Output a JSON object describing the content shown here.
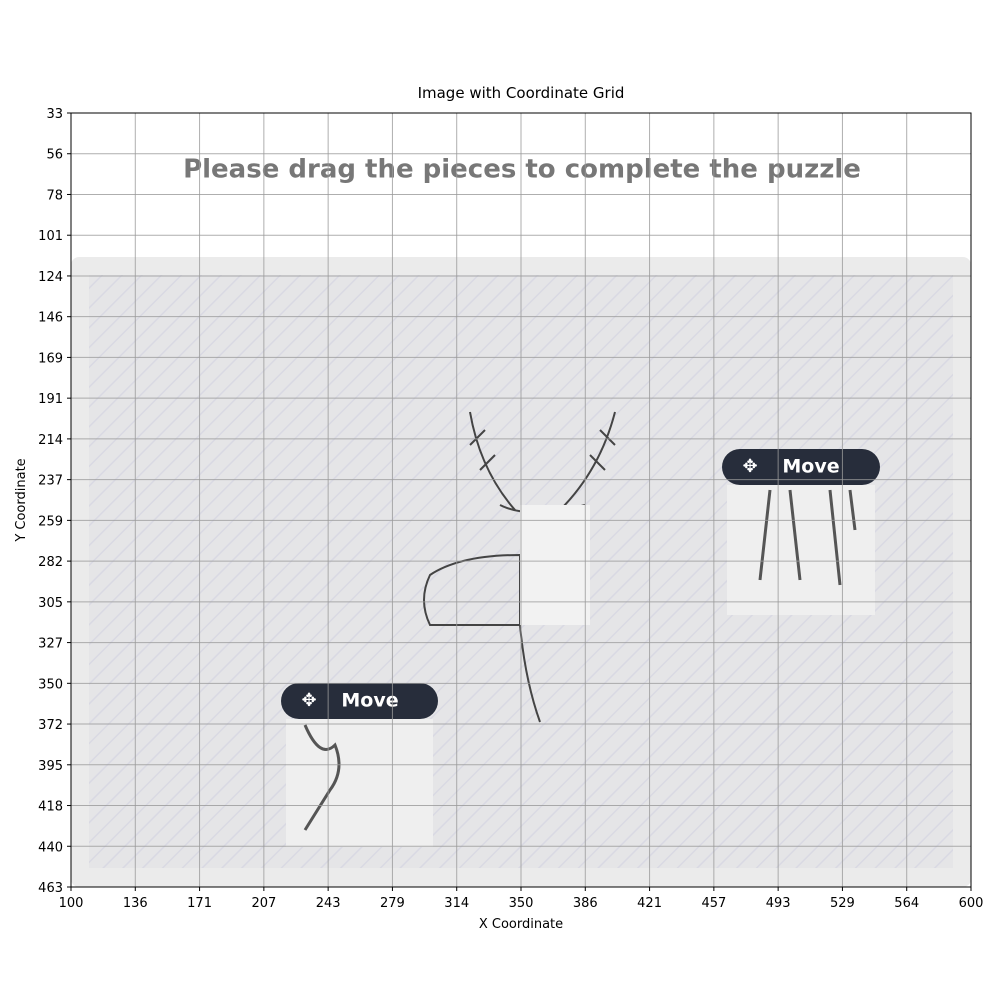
{
  "window": {
    "title": "Image with Coordinate Grid",
    "x_label": "X Coordinate",
    "y_label": "Y Coordinate",
    "x_ticks": [
      100,
      136,
      171,
      207,
      243,
      279,
      314,
      350,
      386,
      421,
      457,
      493,
      529,
      564,
      600
    ],
    "y_ticks": [
      33,
      56,
      78,
      101,
      124,
      146,
      169,
      191,
      214,
      237,
      259,
      282,
      305,
      327,
      350,
      372,
      395,
      418,
      440,
      463
    ]
  },
  "puzzle": {
    "instruction": "Please drag the pieces to complete the puzzle",
    "pieces": [
      {
        "button": "Move"
      },
      {
        "button": "Move"
      }
    ]
  }
}
